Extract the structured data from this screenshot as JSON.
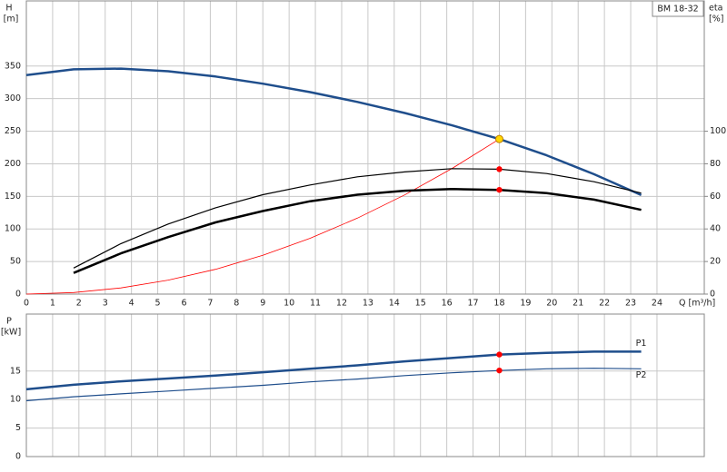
{
  "chart_data": [
    {
      "type": "line",
      "title": "BM 18-32",
      "ylabel": "H",
      "yunit": "[m]",
      "y2label": "eta",
      "y2unit": "[%]",
      "xlabel": "Q [m³/h]",
      "x": [
        0,
        1.8,
        3.6,
        5.4,
        7.2,
        9,
        10.8,
        12.6,
        14.4,
        16.2,
        18,
        19.8,
        21.6,
        23.4
      ],
      "xlim": [
        0,
        25.8
      ],
      "xticks": [
        0,
        1,
        2,
        3,
        4,
        5,
        6,
        7,
        8,
        9,
        10,
        11,
        12,
        13,
        14,
        15,
        16,
        17,
        18,
        19,
        20,
        21,
        22,
        23,
        24
      ],
      "ylim": [
        0,
        450
      ],
      "yticks": [
        0,
        50,
        100,
        150,
        200,
        250,
        300,
        350
      ],
      "y2lim": [
        0,
        180
      ],
      "y2ticks": [
        0,
        20,
        40,
        60,
        80,
        100
      ],
      "grid": true,
      "series": [
        {
          "color": "#1f4e8c",
          "width": 2.5,
          "values": [
            336,
            345,
            346,
            342,
            334,
            323,
            310,
            295,
            278,
            259,
            238,
            213,
            184,
            152
          ]
        },
        {
          "color": "#ff0000",
          "width": 0.8,
          "values": [
            0,
            2.4,
            9.5,
            21.4,
            38,
            59.5,
            85.7,
            116.6,
            152.3,
            192.8,
            238,
            null,
            null,
            null
          ]
        },
        {
          "color": "#000000",
          "width": 1.2,
          "axis": "y2",
          "values": [
            null,
            16,
            31,
            43,
            53,
            61,
            67,
            72,
            75,
            77,
            76.7,
            74,
            69,
            62
          ]
        },
        {
          "color": "#000000",
          "width": 2.5,
          "axis": "y2",
          "values": [
            null,
            13,
            25,
            35,
            44,
            51,
            57,
            61,
            63.5,
            64.5,
            64,
            62,
            58,
            51.7
          ]
        }
      ],
      "points": [
        {
          "x": 18,
          "y": 238,
          "color": "#ffd700"
        },
        {
          "x": 18,
          "y": 76.7,
          "axis": "y2",
          "color": "#ff0000"
        },
        {
          "x": 18,
          "y": 64,
          "axis": "y2",
          "color": "#ff0000"
        }
      ]
    },
    {
      "type": "line",
      "ylabel": "P",
      "yunit": "[kW]",
      "x": [
        0,
        1.8,
        3.6,
        5.4,
        7.2,
        9,
        10.8,
        12.6,
        14.4,
        16.2,
        18,
        19.8,
        21.6,
        23.4
      ],
      "xlim": [
        0,
        25.8
      ],
      "xticks": [
        0,
        1,
        2,
        3,
        4,
        5,
        6,
        7,
        8,
        9,
        10,
        11,
        12,
        13,
        14,
        15,
        16,
        17,
        18,
        19,
        20,
        21,
        22,
        23,
        24
      ],
      "show_xtick_labels": false,
      "ylim": [
        0,
        25
      ],
      "yticks": [
        0,
        5,
        10,
        15
      ],
      "grid": true,
      "series": [
        {
          "name": "P1",
          "color": "#1f4e8c",
          "width": 2.5,
          "values": [
            11.8,
            12.6,
            13.2,
            13.7,
            14.2,
            14.8,
            15.4,
            16.0,
            16.7,
            17.3,
            17.9,
            18.2,
            18.4,
            18.4
          ]
        },
        {
          "name": "P2",
          "color": "#1f4e8c",
          "width": 1.2,
          "values": [
            9.8,
            10.5,
            11.0,
            11.5,
            12.0,
            12.5,
            13.1,
            13.6,
            14.2,
            14.7,
            15.1,
            15.4,
            15.5,
            15.4
          ]
        }
      ],
      "points": [
        {
          "x": 18,
          "y": 17.9,
          "color": "#ff0000"
        },
        {
          "x": 18,
          "y": 15.1,
          "color": "#ff0000"
        }
      ]
    }
  ]
}
